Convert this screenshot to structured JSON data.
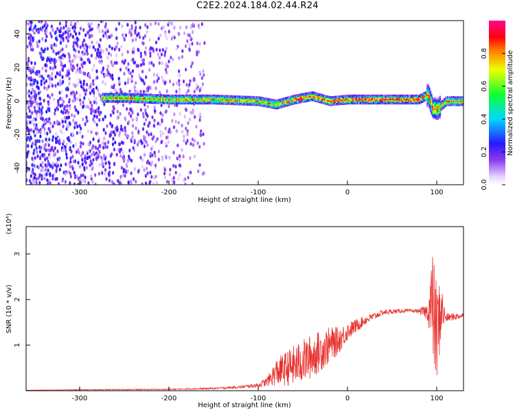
{
  "title": "C2E2.2024.184.02.44.R24",
  "chart_data": [
    {
      "type": "heatmap",
      "xlabel": "Height of straight line (km)",
      "ylabel": "Frequency (Hz)",
      "xlim": [
        -360,
        130
      ],
      "ylim": [
        -50,
        48
      ],
      "x_ticks": [
        -300,
        -200,
        -100,
        0,
        100
      ],
      "y_ticks": [
        -40,
        -20,
        0,
        20,
        40
      ],
      "colorbar": {
        "label": "Normalized spectral amplitude",
        "range": [
          0,
          1
        ],
        "ticks": [
          "0.0",
          "0.2",
          "0.4",
          "0.6",
          "0.8"
        ],
        "colormap": "rainbow (white-violet-blue-cyan-green-yellow-red-magenta)"
      },
      "ridge": {
        "x": [
          -275,
          -250,
          -200,
          -150,
          -100,
          -80,
          -60,
          -40,
          -20,
          0,
          20,
          40,
          60,
          80,
          90,
          95,
          100,
          110,
          130
        ],
        "frequency_hz": [
          2,
          2,
          1,
          1,
          0,
          -2,
          1,
          3,
          0,
          1,
          1,
          1,
          1,
          1,
          4,
          -4,
          -5,
          0,
          0
        ]
      }
    },
    {
      "type": "line",
      "xlabel": "Height of straight line (km)",
      "ylabel": "SNR (10 * v/v)",
      "yscale_label": "(x10⁴)",
      "xlim": [
        -360,
        130
      ],
      "ylim": [
        0,
        3.6
      ],
      "x_ticks": [
        -300,
        -200,
        -100,
        0,
        100
      ],
      "y_ticks": [
        1,
        2,
        3
      ],
      "color": "#e8302c",
      "series": [
        {
          "x": [
            -360,
            -300,
            -200,
            -150,
            -120,
            -100,
            -90,
            -80,
            -60,
            -40,
            -20,
            -10,
            0,
            20,
            40,
            60,
            80,
            90,
            95,
            100,
            105,
            110,
            130
          ],
          "y": [
            0.01,
            0.02,
            0.03,
            0.05,
            0.08,
            0.12,
            0.2,
            0.4,
            0.55,
            0.75,
            1.0,
            1.1,
            1.3,
            1.55,
            1.72,
            1.75,
            1.75,
            1.72,
            1.9,
            1.2,
            1.8,
            1.6,
            1.65
          ],
          "noise_amplitude": [
            0.005,
            0.008,
            0.01,
            0.02,
            0.03,
            0.05,
            0.1,
            0.3,
            0.45,
            0.5,
            0.4,
            0.3,
            0.2,
            0.1,
            0.06,
            0.04,
            0.04,
            0.2,
            1.2,
            1.2,
            0.6,
            0.1,
            0.06
          ]
        }
      ]
    }
  ]
}
